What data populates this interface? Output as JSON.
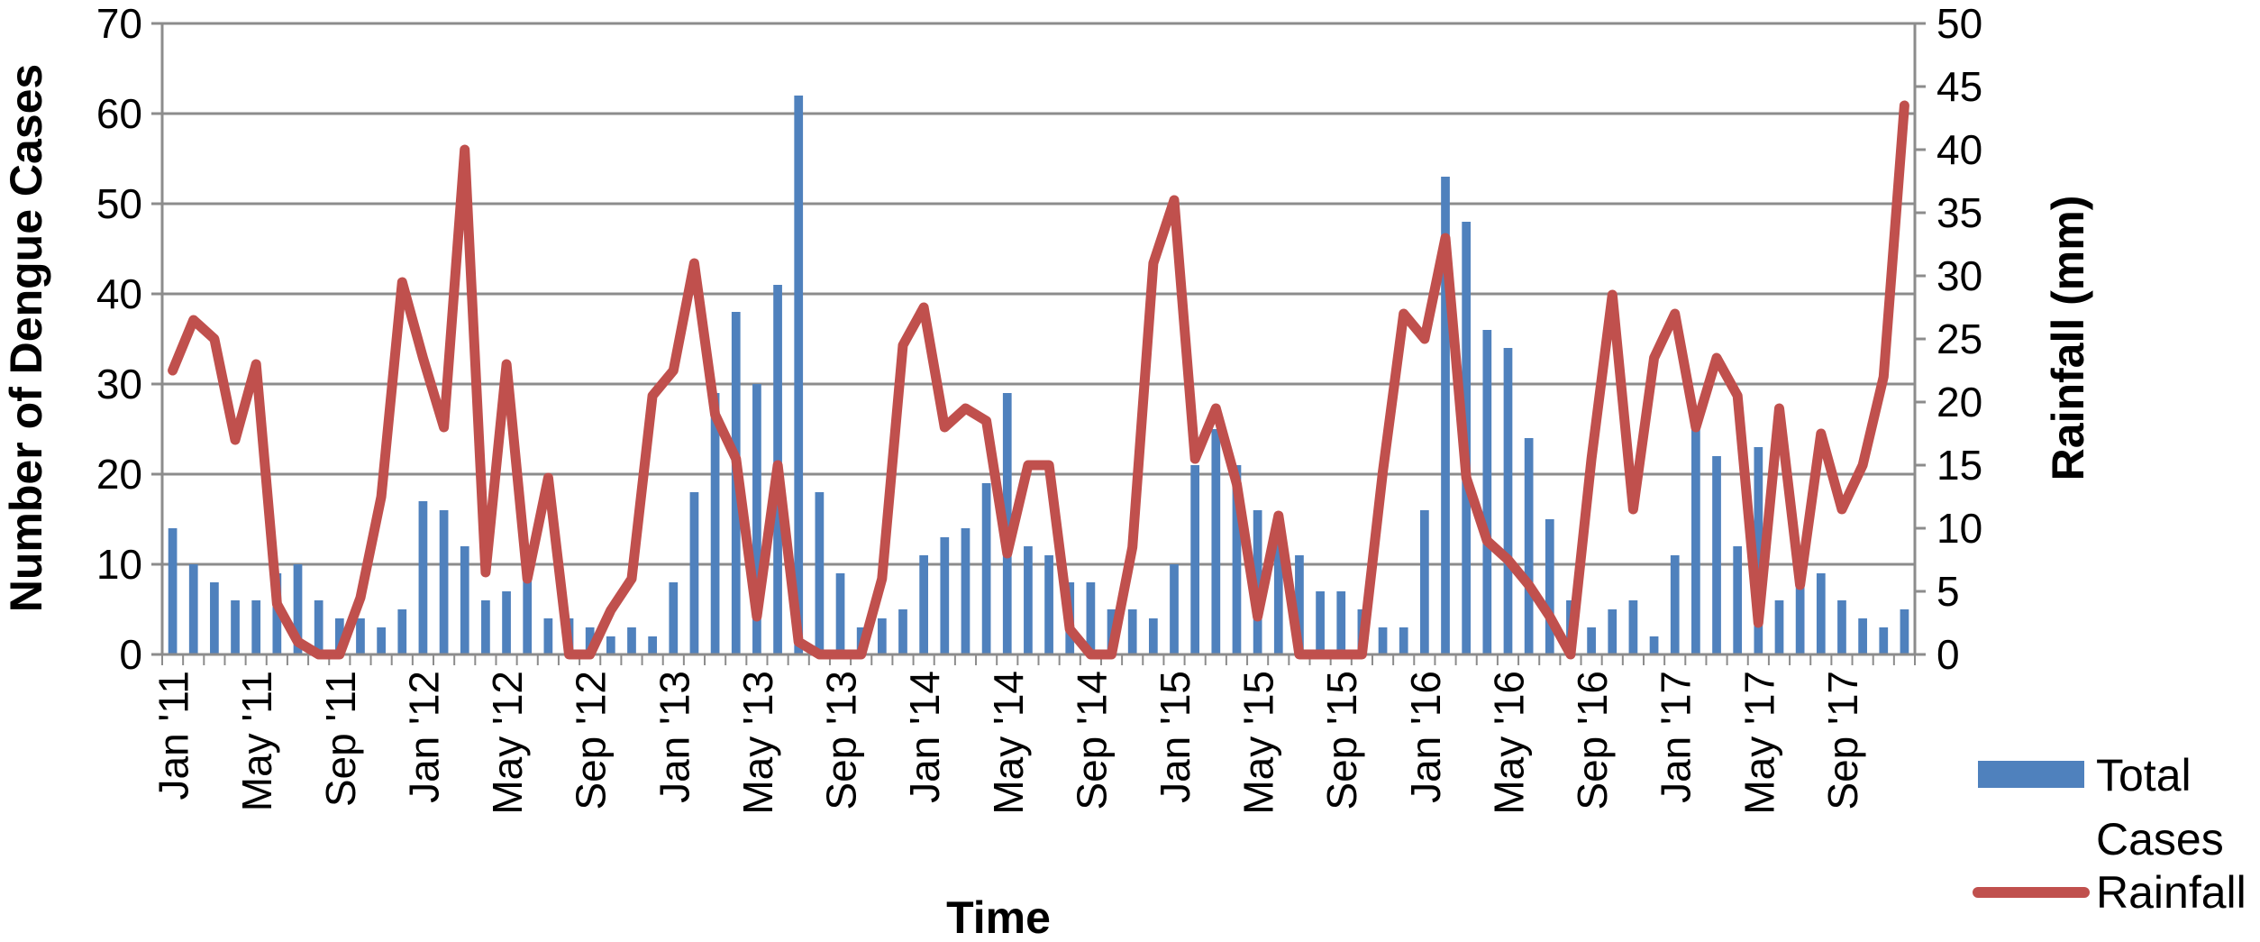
{
  "chart_data": {
    "type": "bar+line",
    "xlabel": "Time",
    "ylabel_left": "Number of Dengue Cases",
    "ylabel_right": "Rainfall (mm)",
    "ylim_left": [
      0,
      70
    ],
    "yticks_left": [
      0,
      10,
      20,
      30,
      40,
      50,
      60,
      70
    ],
    "ylim_right": [
      0,
      50
    ],
    "yticks_right": [
      0,
      5,
      10,
      15,
      20,
      25,
      30,
      35,
      40,
      45,
      50
    ],
    "grid": "horizontal",
    "legend_position": "bottom-right",
    "x_tick_labels": [
      "Jan '11",
      "May '11",
      "Sep '11",
      "Jan '12",
      "May '12",
      "Sep '12",
      "Jan '13",
      "May '13",
      "Sep '13",
      "Jan '14",
      "May '14",
      "Sep '14",
      "Jan '15",
      "May '15",
      "Sep '15",
      "Jan '16",
      "May '16",
      "Sep '16",
      "Jan '17",
      "May '17",
      "Sep '17"
    ],
    "series": [
      {
        "name": "Total Cases",
        "type": "bar",
        "axis": "left",
        "color": "#4f81bd",
        "values": [
          14,
          10,
          8,
          6,
          6,
          9,
          10,
          6,
          4,
          4,
          3,
          5,
          17,
          16,
          12,
          6,
          7,
          9,
          4,
          4,
          3,
          2,
          3,
          2,
          8,
          18,
          29,
          38,
          30,
          41,
          62,
          18,
          9,
          3,
          4,
          5,
          11,
          13,
          14,
          19,
          29,
          12,
          11,
          8,
          8,
          5,
          5,
          4,
          10,
          21,
          25,
          21,
          16,
          14,
          11,
          7,
          7,
          5,
          3,
          3,
          16,
          53,
          48,
          36,
          34,
          24,
          15,
          6,
          3,
          5,
          6,
          2,
          11,
          25,
          22,
          12,
          23,
          6,
          8,
          9,
          6,
          4,
          3,
          5
        ]
      },
      {
        "name": "Rainfall",
        "type": "line",
        "axis": "right",
        "color": "#c0504d",
        "values": [
          22.5,
          26.5,
          25,
          17,
          23,
          4,
          1,
          0,
          0,
          4.5,
          12.5,
          29.5,
          23.5,
          18,
          40,
          6.5,
          23,
          6,
          14,
          0,
          0,
          3.5,
          6,
          20.5,
          22.5,
          31,
          19,
          15.5,
          3,
          15,
          1,
          0,
          0,
          0,
          6,
          24.5,
          27.5,
          18,
          19.5,
          18.5,
          8,
          15,
          15,
          2,
          0,
          0,
          8.5,
          31,
          36,
          15.5,
          19.5,
          13.5,
          3,
          11,
          0,
          0,
          0,
          0,
          14.5,
          27,
          25,
          33,
          14,
          9,
          7.5,
          5.5,
          3,
          0,
          15.5,
          28.5,
          11.5,
          23.5,
          27,
          18,
          23.5,
          20.5,
          2.5,
          19.5,
          5.5,
          17.5,
          11.5,
          15,
          22,
          43.5
        ]
      }
    ],
    "legend": [
      {
        "line1": "Total",
        "line2": "Cases"
      },
      {
        "line1": "Rainfall",
        "line2": ""
      }
    ]
  }
}
